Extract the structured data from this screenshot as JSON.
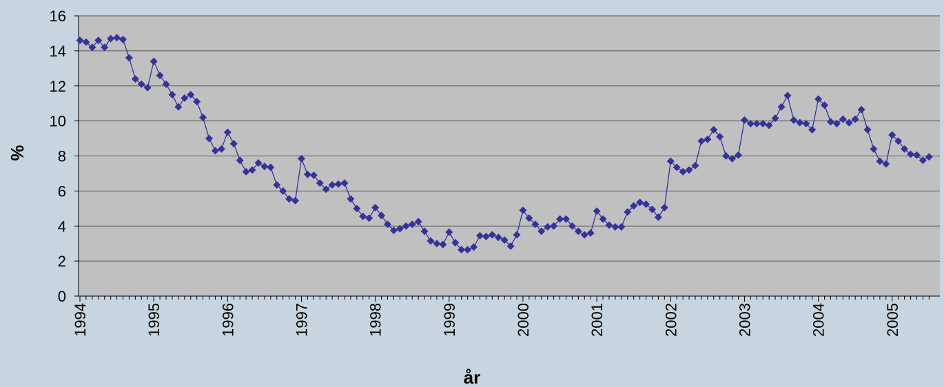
{
  "chart_data": {
    "type": "line",
    "y_label": "%",
    "x_label": "år",
    "categories": [
      "1994",
      null,
      null,
      null,
      null,
      null,
      null,
      null,
      null,
      null,
      null,
      null,
      "1995",
      null,
      null,
      null,
      null,
      null,
      null,
      null,
      null,
      null,
      null,
      null,
      "1996",
      null,
      null,
      null,
      null,
      null,
      null,
      null,
      null,
      null,
      null,
      null,
      "1997",
      null,
      null,
      null,
      null,
      null,
      null,
      null,
      null,
      null,
      null,
      null,
      "1998",
      null,
      null,
      null,
      null,
      null,
      null,
      null,
      null,
      null,
      null,
      null,
      "1999",
      null,
      null,
      null,
      null,
      null,
      null,
      null,
      null,
      null,
      null,
      null,
      "2000",
      null,
      null,
      null,
      null,
      null,
      null,
      null,
      null,
      null,
      null,
      null,
      "2001",
      null,
      null,
      null,
      null,
      null,
      null,
      null,
      null,
      null,
      null,
      null,
      "2002",
      null,
      null,
      null,
      null,
      null,
      null,
      null,
      null,
      null,
      null,
      null,
      "2003",
      null,
      null,
      null,
      null,
      null,
      null,
      null,
      null,
      null,
      null,
      null,
      "2004",
      null,
      null,
      null,
      null,
      null,
      null,
      null,
      null,
      null,
      null,
      null,
      "2005",
      null,
      null,
      null,
      null,
      null,
      null
    ],
    "values": [
      14.6,
      14.5,
      14.2,
      14.6,
      14.2,
      14.7,
      14.75,
      14.65,
      13.6,
      12.4,
      12.1,
      11.9,
      13.4,
      12.6,
      12.1,
      11.5,
      10.8,
      11.3,
      11.5,
      11.1,
      10.2,
      9.0,
      8.3,
      8.4,
      9.35,
      8.7,
      7.75,
      7.1,
      7.2,
      7.6,
      7.4,
      7.35,
      6.35,
      6.0,
      5.55,
      5.45,
      7.85,
      6.95,
      6.9,
      6.45,
      6.1,
      6.35,
      6.4,
      6.45,
      5.55,
      5.0,
      4.55,
      4.45,
      5.05,
      4.6,
      4.1,
      3.75,
      3.85,
      4.0,
      4.1,
      4.25,
      3.7,
      3.15,
      3.0,
      2.95,
      3.65,
      3.05,
      2.65,
      2.65,
      2.8,
      3.45,
      3.4,
      3.5,
      3.35,
      3.2,
      2.85,
      3.5,
      4.9,
      4.45,
      4.1,
      3.7,
      3.95,
      4.0,
      4.4,
      4.4,
      4.0,
      3.7,
      3.5,
      3.6,
      4.85,
      4.4,
      4.05,
      3.95,
      3.95,
      4.8,
      5.15,
      5.35,
      5.25,
      4.95,
      4.5,
      5.05,
      7.7,
      7.35,
      7.1,
      7.2,
      7.45,
      8.85,
      8.95,
      9.5,
      9.1,
      8.0,
      7.85,
      8.05,
      10.05,
      9.85,
      9.85,
      9.85,
      9.75,
      10.15,
      10.8,
      11.45,
      10.05,
      9.9,
      9.85,
      9.5,
      11.25,
      10.9,
      9.95,
      9.85,
      10.1,
      9.9,
      10.1,
      10.65,
      9.5,
      8.4,
      7.7,
      7.55,
      9.2,
      8.85,
      8.4,
      8.1,
      8.05,
      7.75,
      7.95
    ],
    "color": "#333399",
    "ylim": [
      0,
      16
    ],
    "yticks": [
      0,
      2,
      4,
      6,
      8,
      10,
      12,
      14,
      16
    ],
    "grid": true
  }
}
